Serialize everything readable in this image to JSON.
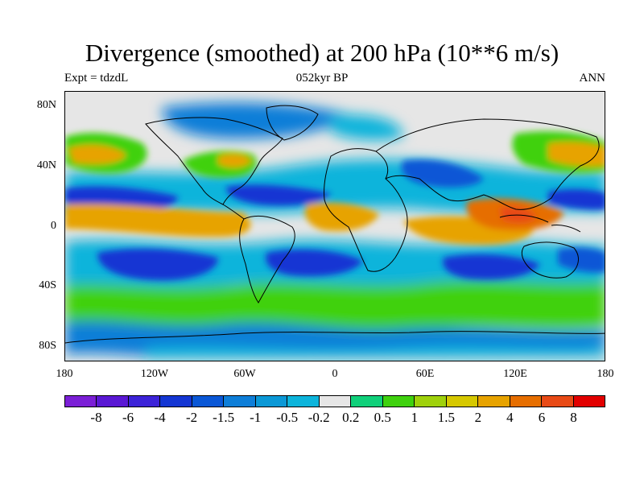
{
  "title": "Divergence (smoothed) at 200 hPa (10**6 m/s)",
  "left_string": "Expt = tdzdL",
  "center_string": "052kyr BP",
  "right_string": "ANN",
  "lat_labels": [
    "80N",
    "40N",
    "0",
    "40S",
    "80S"
  ],
  "lon_labels": [
    "180",
    "120W",
    "60W",
    "0",
    "60E",
    "120E",
    "180"
  ],
  "colorbar": {
    "colors": [
      "#7b1fd6",
      "#5a18d4",
      "#3c23d8",
      "#1436d3",
      "#0a57d6",
      "#0e7ed8",
      "#0b98d6",
      "#0db4db",
      "#e6e6e6",
      "#10d07a",
      "#3fd10f",
      "#9fd10c",
      "#d6c800",
      "#e7a300",
      "#e66e00",
      "#e84a16",
      "#e20000"
    ],
    "labels": [
      "-8",
      "-6",
      "-4",
      "-2",
      "-1.5",
      "-1",
      "-0.5",
      "-0.2",
      "0.2",
      "0.5",
      "1",
      "1.5",
      "2",
      "4",
      "6",
      "8"
    ]
  },
  "map": {
    "background": "#e6e6e6",
    "features": [
      {
        "name": "tropical-band-divergence",
        "color": "#e7a300"
      },
      {
        "name": "warm-pool-maximum",
        "color": "#e66e00"
      },
      {
        "name": "subtropical-convergence",
        "color": "#1436d3"
      },
      {
        "name": "southern-ocean-divergence",
        "color": "#3fd10f"
      }
    ]
  }
}
